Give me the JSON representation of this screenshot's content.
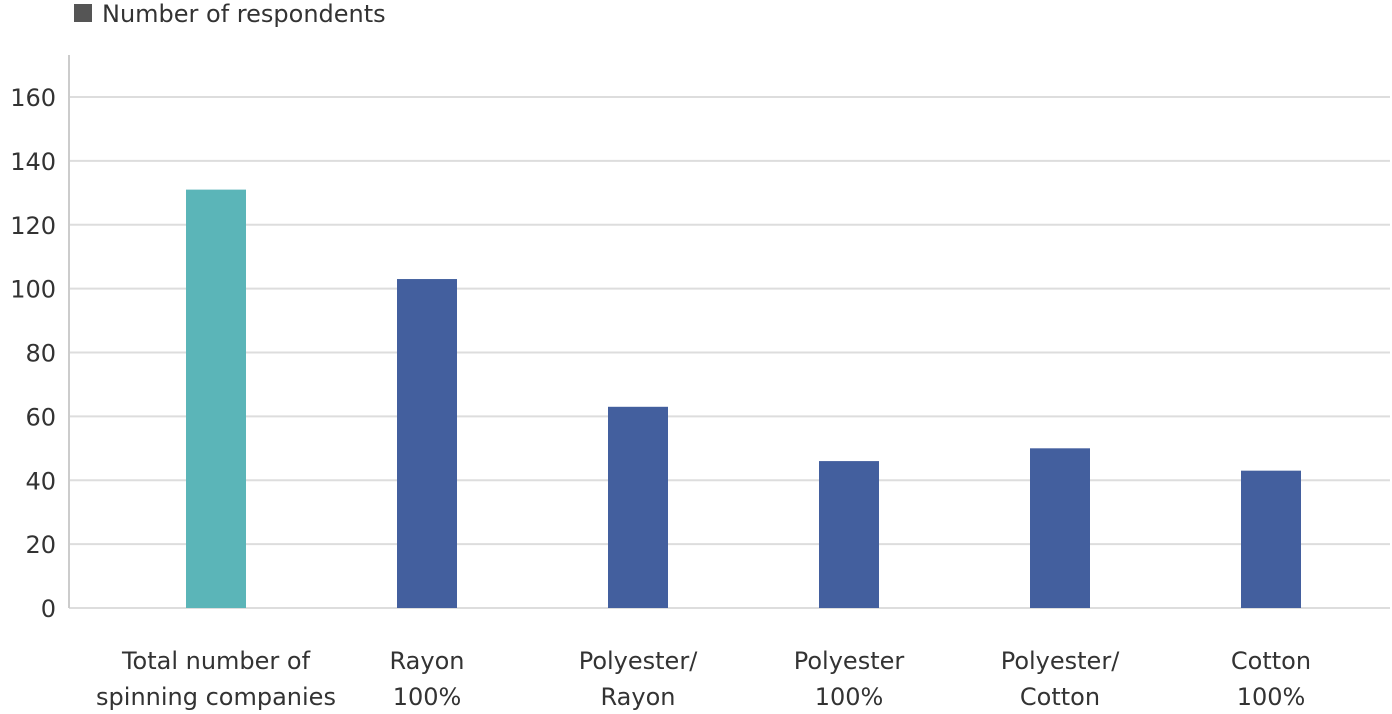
{
  "chart_data": {
    "type": "bar",
    "legend": {
      "label": "Number of respondents",
      "color": "#555555",
      "placement": "top-left"
    },
    "categories": [
      [
        "Total number of",
        "spinning companies"
      ],
      [
        "Rayon",
        "100%"
      ],
      [
        "Polyester/",
        "Rayon"
      ],
      [
        "Polyester",
        "100%"
      ],
      [
        "Polyester/",
        "Cotton"
      ],
      [
        "Cotton",
        "100%"
      ]
    ],
    "values": [
      131,
      103,
      63,
      46,
      50,
      43
    ],
    "colors": [
      "#5bb5b8",
      "#435f9e",
      "#435f9e",
      "#435f9e",
      "#435f9e",
      "#435f9e"
    ],
    "ylim": [
      0,
      160
    ],
    "yticks": [
      0,
      20,
      40,
      60,
      80,
      100,
      120,
      140,
      160
    ],
    "grid": true,
    "title": "",
    "xlabel": "",
    "ylabel": ""
  }
}
